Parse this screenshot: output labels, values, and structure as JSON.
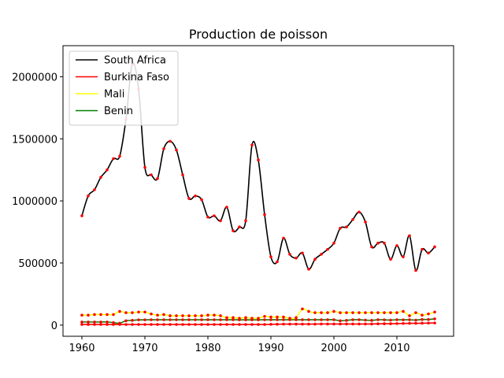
{
  "chart_data": {
    "type": "line",
    "title": "Production de poisson",
    "xlabel": "",
    "ylabel": "",
    "xlim": [
      1957,
      2019
    ],
    "ylim": [
      -90000,
      2250000
    ],
    "xticks": [
      1960,
      1970,
      1980,
      1990,
      2000,
      2010
    ],
    "yticks": [
      0,
      500000,
      1000000,
      1500000,
      2000000
    ],
    "grid": false,
    "legend_position": "top-left",
    "marker_color": "#ff0000",
    "x": [
      1960,
      1961,
      1962,
      1963,
      1964,
      1965,
      1966,
      1967,
      1968,
      1969,
      1970,
      1971,
      1972,
      1973,
      1974,
      1975,
      1976,
      1977,
      1978,
      1979,
      1980,
      1981,
      1982,
      1983,
      1984,
      1985,
      1986,
      1987,
      1988,
      1989,
      1990,
      1991,
      1992,
      1993,
      1994,
      1995,
      1996,
      1997,
      1998,
      1999,
      2000,
      2001,
      2002,
      2003,
      2004,
      2005,
      2006,
      2007,
      2008,
      2009,
      2010,
      2011,
      2012,
      2013,
      2014,
      2015,
      2016
    ],
    "series": [
      {
        "name": "South Africa",
        "color": "#000000",
        "values": [
          880000,
          1040000,
          1090000,
          1190000,
          1250000,
          1340000,
          1360000,
          1660000,
          2100000,
          1900000,
          1270000,
          1210000,
          1180000,
          1420000,
          1480000,
          1410000,
          1210000,
          1020000,
          1040000,
          1010000,
          870000,
          880000,
          840000,
          950000,
          760000,
          790000,
          840000,
          1450000,
          1330000,
          890000,
          550000,
          510000,
          700000,
          570000,
          540000,
          580000,
          450000,
          530000,
          570000,
          610000,
          660000,
          780000,
          790000,
          850000,
          910000,
          830000,
          630000,
          660000,
          660000,
          530000,
          640000,
          550000,
          720000,
          440000,
          610000,
          580000,
          630000
        ]
      },
      {
        "name": "Burkina Faso",
        "color": "#ff0000",
        "values": [
          5000,
          5000,
          5000,
          5000,
          5000,
          5000,
          5000,
          5000,
          5000,
          5000,
          5000,
          5000,
          5000,
          5000,
          5000,
          5000,
          5000,
          5000,
          5000,
          5000,
          5000,
          5000,
          5000,
          5000,
          5000,
          5000,
          5000,
          5000,
          5000,
          5000,
          6000,
          7000,
          8000,
          8000,
          8000,
          8000,
          8000,
          8000,
          9000,
          9000,
          9000,
          9000,
          9000,
          9000,
          9000,
          9000,
          9000,
          10000,
          11000,
          11000,
          12000,
          13000,
          14000,
          14000,
          15000,
          16000,
          17000
        ]
      },
      {
        "name": "Mali",
        "color": "#ffff00",
        "values": [
          80000,
          80000,
          85000,
          85000,
          85000,
          85000,
          110000,
          100000,
          100000,
          105000,
          105000,
          90000,
          80000,
          85000,
          75000,
          75000,
          75000,
          75000,
          75000,
          75000,
          80000,
          80000,
          75000,
          60000,
          60000,
          55000,
          60000,
          55000,
          55000,
          70000,
          65000,
          65000,
          65000,
          55000,
          60000,
          130000,
          110000,
          100000,
          100000,
          100000,
          110000,
          100000,
          100000,
          100000,
          100000,
          100000,
          100000,
          100000,
          100000,
          100000,
          100000,
          110000,
          75000,
          100000,
          80000,
          90000,
          105000
        ]
      },
      {
        "name": "Benin",
        "color": "#008000",
        "values": [
          25000,
          25000,
          25000,
          25000,
          25000,
          20000,
          15000,
          35000,
          38000,
          42000,
          42000,
          43000,
          43000,
          43000,
          43000,
          43000,
          43000,
          43000,
          43000,
          43000,
          43000,
          43000,
          43000,
          43000,
          43000,
          42000,
          42000,
          42000,
          42000,
          43000,
          43000,
          43000,
          43000,
          43000,
          43000,
          43000,
          43000,
          43000,
          43000,
          43000,
          43000,
          35000,
          38000,
          43000,
          43000,
          40000,
          38000,
          43000,
          42000,
          40000,
          43000,
          42000,
          43000,
          40000,
          45000,
          45000,
          50000
        ]
      }
    ]
  }
}
